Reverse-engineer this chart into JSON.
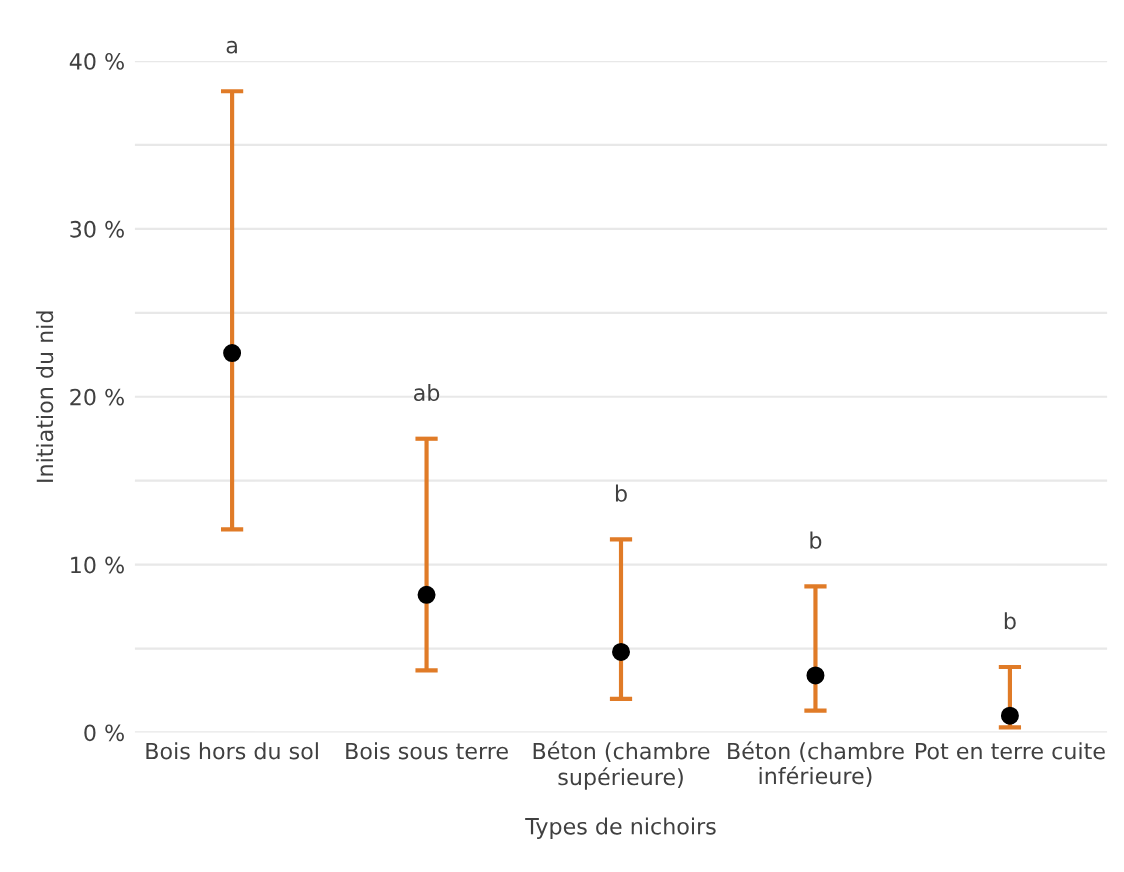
{
  "chart_data": {
    "type": "scatter",
    "xlabel": "Types de nichoirs",
    "ylabel": "Initiation du nid",
    "categories": [
      "Bois hors du sol",
      "Bois sous terre",
      "Béton (chambre\nsupérieure)",
      "Béton (chambre\ninférieure)",
      "Pot en terre cuite"
    ],
    "series": [
      {
        "color": "#000000",
        "values": [
          22.6,
          8.2,
          4.8,
          3.4,
          1.0
        ],
        "errors": [
          [
            12.1,
            38.2
          ],
          [
            3.7,
            17.5
          ],
          [
            2.0,
            11.5
          ],
          [
            1.3,
            8.7
          ],
          [
            0.3,
            3.9
          ]
        ]
      }
    ],
    "ylim": [
      0,
      40
    ],
    "yticks": [
      {
        "value": 0,
        "label": "0 %"
      },
      {
        "value": 5,
        "label": null
      },
      {
        "value": 10,
        "label": "10 %"
      },
      {
        "value": 15,
        "label": null
      },
      {
        "value": 20,
        "label": "20 %"
      },
      {
        "value": 25,
        "label": null
      },
      {
        "value": 30,
        "label": "30 %"
      },
      {
        "value": 35,
        "label": null
      },
      {
        "value": 40,
        "label": "40 %"
      }
    ],
    "grid": "y",
    "marker": "circle",
    "annotations": [
      "a",
      "ab",
      "b",
      "b",
      "b"
    ]
  }
}
